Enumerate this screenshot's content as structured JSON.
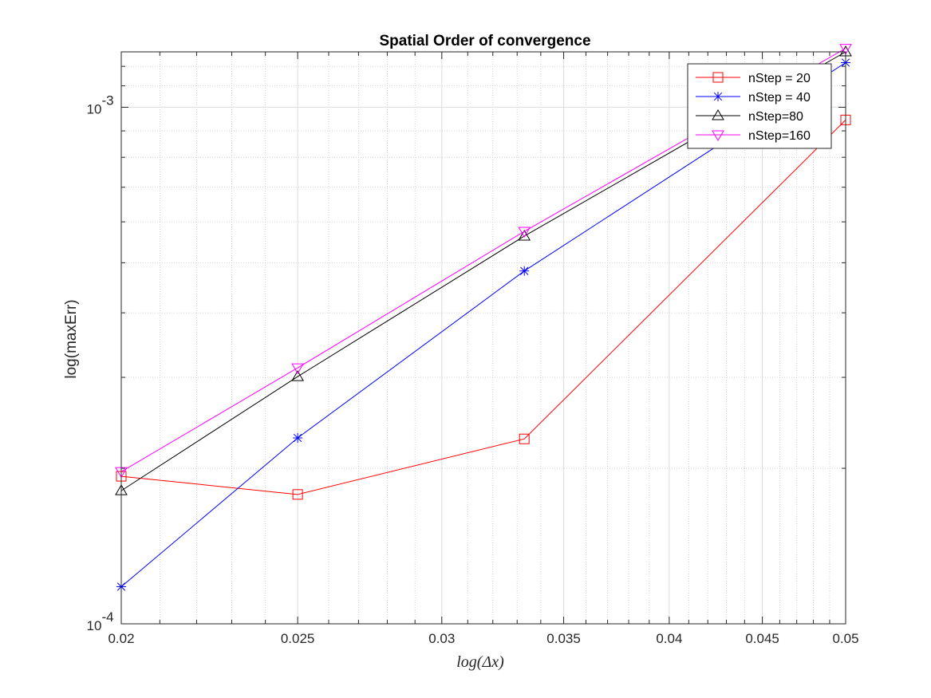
{
  "chart_data": {
    "type": "line",
    "title": "Spatial Order of convergence",
    "xlabel": "log(Δx)",
    "ylabel": "log(maxErr)",
    "x_scale": "log",
    "y_scale": "log",
    "xlim": [
      0.02,
      0.05
    ],
    "ylim": [
      0.0001,
      0.00128
    ],
    "grid": true,
    "minor_grid": true,
    "legend_position": "top-right",
    "x_ticks": [
      0.02,
      0.025,
      0.03,
      0.035,
      0.04,
      0.045,
      0.05
    ],
    "x_tick_labels": [
      "0.02",
      "0.025",
      "0.03",
      "0.035",
      "0.04",
      "0.045",
      "0.05"
    ],
    "y_ticks": [
      0.0001,
      0.001
    ],
    "y_tick_labels": [
      {
        "base": "10",
        "exp": "-4"
      },
      {
        "base": "10",
        "exp": "-3"
      }
    ],
    "x": [
      0.02,
      0.025,
      0.0333,
      0.05
    ],
    "series": [
      {
        "name": "nStep = 20",
        "color": "#ff0000",
        "marker": "square",
        "values": [
          0.000193,
          0.000178,
          0.000228,
          0.000945
        ]
      },
      {
        "name": "nStep = 40",
        "color": "#0000ff",
        "marker": "asterisk",
        "values": [
          0.000118,
          0.000229,
          0.000482,
          0.00122
        ]
      },
      {
        "name": "nStep=80",
        "color": "#000000",
        "marker": "triangle-up",
        "values": [
          0.000181,
          0.000301,
          0.000563,
          0.00128
        ]
      },
      {
        "name": "nStep=160",
        "color": "#ff00ff",
        "marker": "triangle-down",
        "values": [
          0.000197,
          0.000313,
          0.000575,
          0.0013
        ]
      }
    ]
  }
}
